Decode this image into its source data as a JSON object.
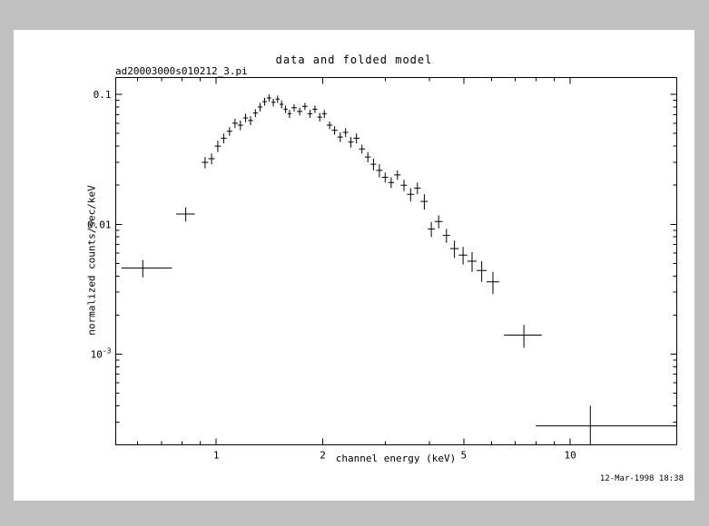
{
  "window": {
    "background_color": "#c0c0c0",
    "page_color": "#ffffff",
    "line_color": "#000000"
  },
  "chart_data": {
    "type": "scatter",
    "subtype": "x-ray-spectrum-with-error-bars",
    "title": "data and folded model",
    "annotations": [
      "ad20003000s010212_3.pi"
    ],
    "timestamp": "12-Mar-1998 18:38",
    "xlabel": "channel energy (keV)",
    "ylabel": "normalized counts/sec/keV",
    "x_scale": "log",
    "y_scale": "log",
    "xlim": [
      0.52,
      20
    ],
    "ylim": [
      0.0002,
      0.135
    ],
    "grid": false,
    "legend": null,
    "marker": "plus-with-error-bars",
    "x_major_ticks": [
      1,
      2,
      5,
      10
    ],
    "x_tick_labels": [
      "1",
      "2",
      "5",
      "10"
    ],
    "x_minor_ticks": [
      0.6,
      0.7,
      0.8,
      0.9,
      3,
      4,
      6,
      7,
      8,
      9
    ],
    "y_major_ticks": [
      0.001,
      0.01,
      0.1
    ],
    "y_tick_labels": [
      "10^-3",
      "0.01",
      "0.1"
    ],
    "y_minor_ticks": [
      0.0003,
      0.0004,
      0.0005,
      0.0006,
      0.0007,
      0.0008,
      0.0009,
      0.002,
      0.003,
      0.004,
      0.005,
      0.006,
      0.007,
      0.008,
      0.009,
      0.02,
      0.03,
      0.04,
      0.05,
      0.06,
      0.07,
      0.08,
      0.09
    ],
    "series": [
      {
        "name": "data",
        "points": [
          {
            "e": 0.62,
            "elo": 0.08,
            "ehi": 0.13,
            "rate": 0.0046,
            "err": 0.0007
          },
          {
            "e": 0.82,
            "elo": 0.05,
            "ehi": 0.05,
            "rate": 0.012,
            "err": 0.0015
          },
          {
            "e": 0.93,
            "elo": 0.02,
            "ehi": 0.02,
            "rate": 0.03,
            "err": 0.003
          },
          {
            "e": 0.97,
            "elo": 0.02,
            "ehi": 0.02,
            "rate": 0.032,
            "err": 0.003
          },
          {
            "e": 1.01,
            "elo": 0.02,
            "ehi": 0.02,
            "rate": 0.04,
            "err": 0.004
          },
          {
            "e": 1.05,
            "elo": 0.02,
            "ehi": 0.02,
            "rate": 0.046,
            "err": 0.004
          },
          {
            "e": 1.09,
            "elo": 0.02,
            "ehi": 0.02,
            "rate": 0.052,
            "err": 0.004
          },
          {
            "e": 1.13,
            "elo": 0.02,
            "ehi": 0.02,
            "rate": 0.06,
            "err": 0.005
          },
          {
            "e": 1.17,
            "elo": 0.02,
            "ehi": 0.02,
            "rate": 0.058,
            "err": 0.005
          },
          {
            "e": 1.21,
            "elo": 0.02,
            "ehi": 0.02,
            "rate": 0.066,
            "err": 0.005
          },
          {
            "e": 1.25,
            "elo": 0.02,
            "ehi": 0.02,
            "rate": 0.063,
            "err": 0.005
          },
          {
            "e": 1.29,
            "elo": 0.02,
            "ehi": 0.02,
            "rate": 0.072,
            "err": 0.005
          },
          {
            "e": 1.33,
            "elo": 0.02,
            "ehi": 0.02,
            "rate": 0.08,
            "err": 0.006
          },
          {
            "e": 1.37,
            "elo": 0.02,
            "ehi": 0.02,
            "rate": 0.088,
            "err": 0.006
          },
          {
            "e": 1.41,
            "elo": 0.02,
            "ehi": 0.02,
            "rate": 0.094,
            "err": 0.006
          },
          {
            "e": 1.45,
            "elo": 0.02,
            "ehi": 0.02,
            "rate": 0.087,
            "err": 0.006
          },
          {
            "e": 1.49,
            "elo": 0.02,
            "ehi": 0.02,
            "rate": 0.092,
            "err": 0.006
          },
          {
            "e": 1.53,
            "elo": 0.02,
            "ehi": 0.02,
            "rate": 0.084,
            "err": 0.006
          },
          {
            "e": 1.57,
            "elo": 0.02,
            "ehi": 0.02,
            "rate": 0.077,
            "err": 0.005
          },
          {
            "e": 1.61,
            "elo": 0.02,
            "ehi": 0.02,
            "rate": 0.071,
            "err": 0.005
          },
          {
            "e": 1.66,
            "elo": 0.03,
            "ehi": 0.03,
            "rate": 0.079,
            "err": 0.005
          },
          {
            "e": 1.72,
            "elo": 0.03,
            "ehi": 0.03,
            "rate": 0.074,
            "err": 0.005
          },
          {
            "e": 1.78,
            "elo": 0.03,
            "ehi": 0.03,
            "rate": 0.081,
            "err": 0.005
          },
          {
            "e": 1.84,
            "elo": 0.03,
            "ehi": 0.03,
            "rate": 0.071,
            "err": 0.005
          },
          {
            "e": 1.9,
            "elo": 0.03,
            "ehi": 0.03,
            "rate": 0.077,
            "err": 0.005
          },
          {
            "e": 1.96,
            "elo": 0.03,
            "ehi": 0.03,
            "rate": 0.067,
            "err": 0.005
          },
          {
            "e": 2.02,
            "elo": 0.03,
            "ehi": 0.03,
            "rate": 0.071,
            "err": 0.005
          },
          {
            "e": 2.09,
            "elo": 0.04,
            "ehi": 0.04,
            "rate": 0.058,
            "err": 0.004
          },
          {
            "e": 2.16,
            "elo": 0.04,
            "ehi": 0.04,
            "rate": 0.053,
            "err": 0.004
          },
          {
            "e": 2.24,
            "elo": 0.04,
            "ehi": 0.04,
            "rate": 0.047,
            "err": 0.004
          },
          {
            "e": 2.32,
            "elo": 0.04,
            "ehi": 0.04,
            "rate": 0.051,
            "err": 0.004
          },
          {
            "e": 2.4,
            "elo": 0.04,
            "ehi": 0.04,
            "rate": 0.043,
            "err": 0.004
          },
          {
            "e": 2.49,
            "elo": 0.05,
            "ehi": 0.05,
            "rate": 0.046,
            "err": 0.004
          },
          {
            "e": 2.58,
            "elo": 0.05,
            "ehi": 0.05,
            "rate": 0.038,
            "err": 0.003
          },
          {
            "e": 2.68,
            "elo": 0.05,
            "ehi": 0.05,
            "rate": 0.033,
            "err": 0.003
          },
          {
            "e": 2.78,
            "elo": 0.05,
            "ehi": 0.05,
            "rate": 0.029,
            "err": 0.003
          },
          {
            "e": 2.89,
            "elo": 0.06,
            "ehi": 0.06,
            "rate": 0.026,
            "err": 0.003
          },
          {
            "e": 3.0,
            "elo": 0.06,
            "ehi": 0.06,
            "rate": 0.023,
            "err": 0.002
          },
          {
            "e": 3.12,
            "elo": 0.06,
            "ehi": 0.06,
            "rate": 0.021,
            "err": 0.002
          },
          {
            "e": 3.25,
            "elo": 0.07,
            "ehi": 0.07,
            "rate": 0.024,
            "err": 0.002
          },
          {
            "e": 3.39,
            "elo": 0.07,
            "ehi": 0.07,
            "rate": 0.02,
            "err": 0.002
          },
          {
            "e": 3.54,
            "elo": 0.08,
            "ehi": 0.08,
            "rate": 0.017,
            "err": 0.002
          },
          {
            "e": 3.7,
            "elo": 0.08,
            "ehi": 0.08,
            "rate": 0.019,
            "err": 0.002
          },
          {
            "e": 3.87,
            "elo": 0.09,
            "ehi": 0.09,
            "rate": 0.015,
            "err": 0.002
          },
          {
            "e": 4.05,
            "elo": 0.09,
            "ehi": 0.09,
            "rate": 0.0092,
            "err": 0.0012
          },
          {
            "e": 4.25,
            "elo": 0.11,
            "ehi": 0.11,
            "rate": 0.0105,
            "err": 0.0012
          },
          {
            "e": 4.47,
            "elo": 0.11,
            "ehi": 0.11,
            "rate": 0.0082,
            "err": 0.001
          },
          {
            "e": 4.71,
            "elo": 0.13,
            "ehi": 0.13,
            "rate": 0.0065,
            "err": 0.001
          },
          {
            "e": 4.98,
            "elo": 0.14,
            "ehi": 0.14,
            "rate": 0.0058,
            "err": 0.0009
          },
          {
            "e": 5.28,
            "elo": 0.16,
            "ehi": 0.16,
            "rate": 0.0052,
            "err": 0.0009
          },
          {
            "e": 5.62,
            "elo": 0.18,
            "ehi": 0.18,
            "rate": 0.0044,
            "err": 0.0008
          },
          {
            "e": 6.05,
            "elo": 0.25,
            "ehi": 0.25,
            "rate": 0.0036,
            "err": 0.0007
          },
          {
            "e": 7.4,
            "elo": 0.9,
            "ehi": 0.9,
            "rate": 0.0014,
            "err": 0.00028
          },
          {
            "e": 11.4,
            "elo": 3.4,
            "ehi": 8.6,
            "rate": 0.00028,
            "err": 0.00012
          }
        ]
      }
    ]
  }
}
